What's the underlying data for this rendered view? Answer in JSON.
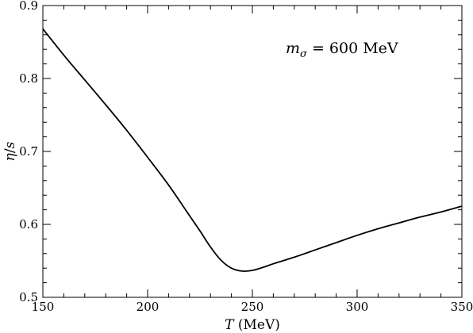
{
  "chart_data": {
    "type": "line",
    "xlim": [
      150,
      350
    ],
    "ylim": [
      0.5,
      0.9
    ],
    "x_ticks": [
      150,
      200,
      250,
      300,
      350
    ],
    "x_tick_labels": [
      "150",
      "200",
      "250",
      "300",
      "350"
    ],
    "y_ticks": [
      0.5,
      0.6,
      0.7,
      0.8,
      0.9
    ],
    "y_tick_labels": [
      "0.5",
      "0.6",
      "0.7",
      "0.8",
      "0.9"
    ],
    "x_minor_step": 10,
    "y_minor_step": 0.02,
    "xlabel": {
      "symbol": "T",
      "unit": " (MeV)"
    },
    "ylabel": {
      "num": "η",
      "sep": "/",
      "den": "s"
    },
    "annotation": {
      "symbol": "m",
      "subscript": "σ",
      "text": " = 600 MeV"
    },
    "grid": false,
    "line_color": "#000000",
    "series": [
      {
        "x": [
          150,
          160,
          170,
          180,
          190,
          200,
          210,
          220,
          225,
          230,
          235,
          240,
          245,
          250,
          255,
          260,
          270,
          280,
          290,
          300,
          310,
          320,
          330,
          340,
          350
        ],
        "y": [
          0.868,
          0.832,
          0.798,
          0.764,
          0.729,
          0.692,
          0.654,
          0.612,
          0.591,
          0.569,
          0.551,
          0.54,
          0.536,
          0.537,
          0.541,
          0.546,
          0.555,
          0.565,
          0.575,
          0.585,
          0.594,
          0.602,
          0.61,
          0.617,
          0.625
        ]
      }
    ]
  }
}
